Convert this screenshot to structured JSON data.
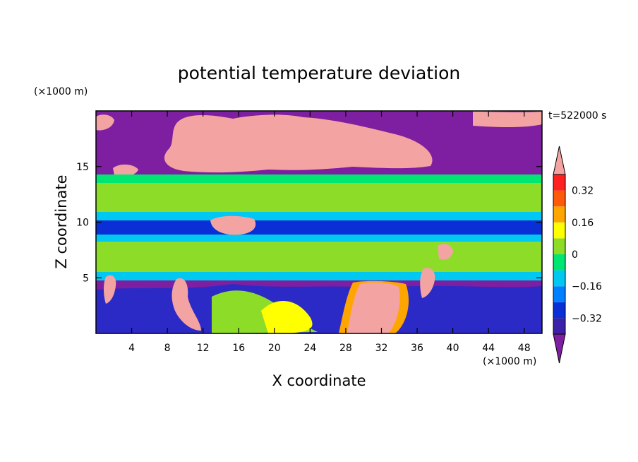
{
  "chart_data": {
    "type": "heatmap",
    "title": "potential temperature deviation",
    "xlabel": "X coordinate",
    "ylabel": "Z coordinate",
    "x_unit": "(×1000 m)",
    "y_unit": "(×1000 m)",
    "time_label": "t=522000 s",
    "xlim": [
      0,
      50
    ],
    "ylim": [
      0,
      20
    ],
    "x_ticks": [
      4,
      8,
      12,
      16,
      20,
      24,
      28,
      32,
      36,
      40,
      44,
      48
    ],
    "y_ticks": [
      5,
      10,
      15
    ],
    "colorbar": {
      "levels": [
        -0.4,
        -0.32,
        -0.24,
        -0.16,
        -0.08,
        0,
        0.08,
        0.16,
        0.24,
        0.32,
        0.4
      ],
      "tick_labels": [
        "0.32",
        "0.16",
        "0",
        "-0.16",
        "-0.32"
      ],
      "colors": [
        "#7d1fa0",
        "#3b21a8",
        "#0a2fd6",
        "#0080ff",
        "#00c8f0",
        "#00e673",
        "#8cdc28",
        "#ffff00",
        "#ffa500",
        "#ff5a0a",
        "#ff2020",
        "#f4a3a3"
      ]
    },
    "layers": [
      {
        "z_range": [
          15,
          20
        ],
        "dominant": "#7d1fa0",
        "with": "#f4a3a3"
      },
      {
        "z_range": [
          12,
          15
        ],
        "dominant": "#8cdc28",
        "with": "#00e673"
      },
      {
        "z_range": [
          9,
          10.5
        ],
        "dominant": "#0a2fd6",
        "with": "#00c8f0"
      },
      {
        "z_range": [
          5,
          9
        ],
        "dominant": "#8cdc28",
        "with": "#00e673"
      },
      {
        "z_range": [
          0,
          5
        ],
        "dominant": "#7d1fa0",
        "with": "#f4a3a3"
      }
    ]
  }
}
